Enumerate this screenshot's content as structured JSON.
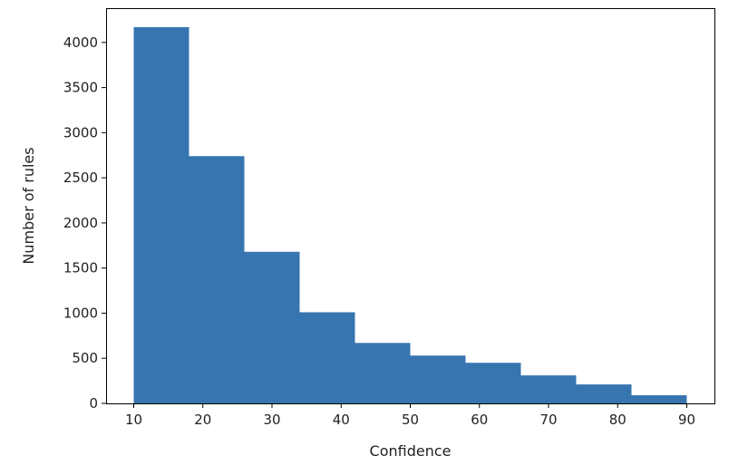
{
  "chart_data": {
    "type": "bar",
    "subtype": "histogram",
    "title": "",
    "xlabel": "Confidence",
    "ylabel": "Number of rules",
    "bin_edges": [
      10,
      18,
      26,
      34,
      42,
      50,
      58,
      66,
      74,
      82,
      90
    ],
    "values": [
      4170,
      2740,
      1680,
      1010,
      670,
      530,
      450,
      310,
      210,
      90
    ],
    "xlim": [
      6,
      94
    ],
    "ylim": [
      0,
      4380
    ],
    "xticks": [
      10,
      20,
      30,
      40,
      50,
      60,
      70,
      80,
      90
    ],
    "xtick_labels": [
      "10",
      "20",
      "30",
      "40",
      "50",
      "60",
      "70",
      "80",
      "90"
    ],
    "yticks": [
      0,
      500,
      1000,
      1500,
      2000,
      2500,
      3000,
      3500,
      4000
    ],
    "ytick_labels": [
      "0",
      "500",
      "1000",
      "1500",
      "2000",
      "2500",
      "3000",
      "3500",
      "4000"
    ],
    "bar_color": "#3775b0",
    "grid": false,
    "legend": "none"
  }
}
